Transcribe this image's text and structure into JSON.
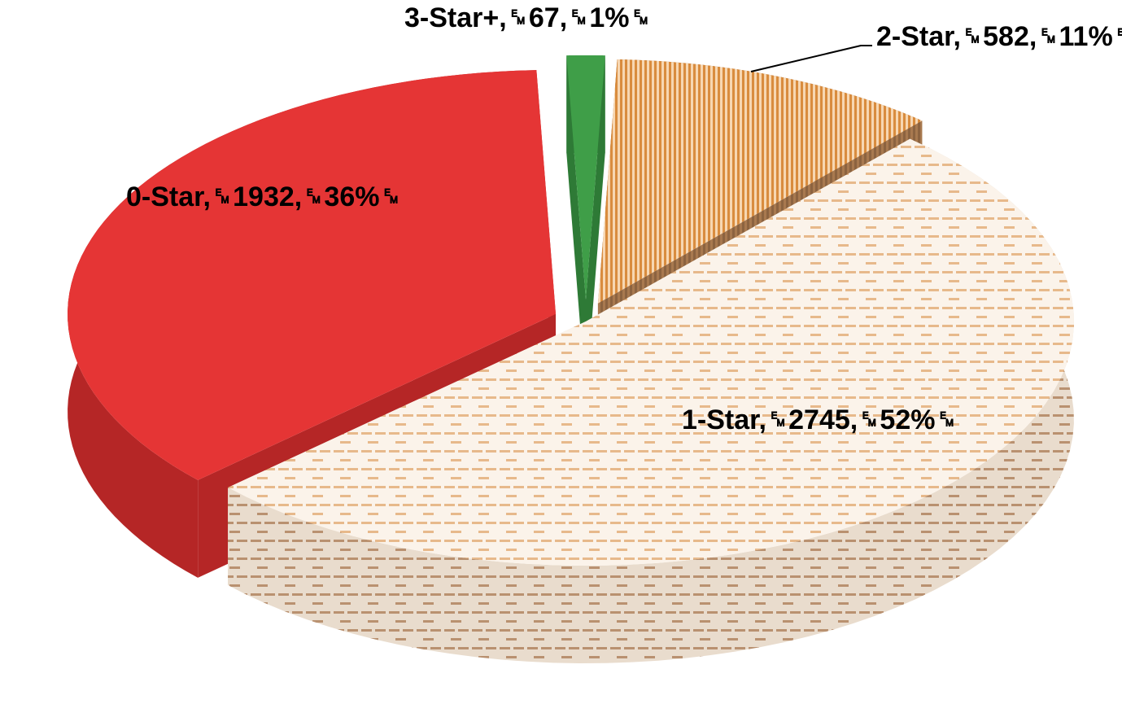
{
  "chart_data": {
    "type": "pie",
    "style": "3d-exploded",
    "categories": [
      "0-Star",
      "1-Star",
      "2-Star",
      "3-Star+"
    ],
    "values": [
      1932,
      2745,
      582,
      67
    ],
    "percentages": [
      36,
      52,
      11,
      1
    ],
    "labels": [
      "0-Star,␙1932,␙36%␙",
      "1-Star,␙2745,␙52%␙",
      "2-Star,␙582,␙11%␙",
      "3-Star+,␙67,␙1%␙"
    ],
    "legend": "none",
    "colors": {
      "0-Star": "#e53535",
      "1-Star": "#f6e9dc",
      "2-Star": "#c8956a",
      "3-Star+": "#3f9e48"
    }
  }
}
